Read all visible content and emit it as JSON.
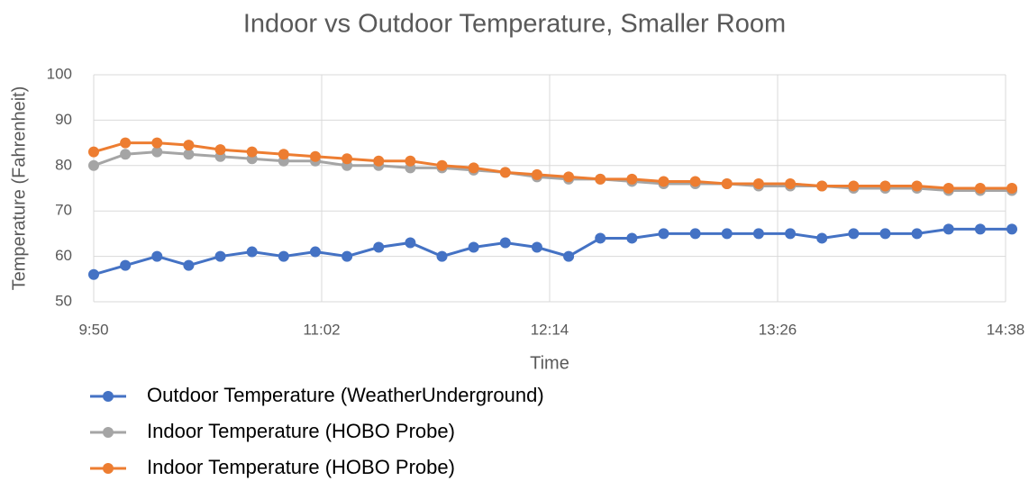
{
  "chart_data": {
    "type": "line",
    "title": "Indoor vs Outdoor Temperature, Smaller Room",
    "x_label": "Time",
    "y_label": "Temperature (Fahrenheit)",
    "x": [
      590,
      600,
      610,
      620,
      630,
      640,
      650,
      660,
      670,
      680,
      690,
      700,
      710,
      720,
      730,
      740,
      750,
      760,
      770,
      780,
      790,
      800,
      810,
      820,
      830,
      840,
      850,
      860,
      870,
      880
    ],
    "xlim": [
      590,
      878
    ],
    "xticks": [
      {
        "value": 590,
        "label": "9:50"
      },
      {
        "value": 662,
        "label": "11:02"
      },
      {
        "value": 734,
        "label": "12:14"
      },
      {
        "value": 806,
        "label": "13:26"
      },
      {
        "value": 878,
        "label": "14:38"
      }
    ],
    "ylim": [
      50,
      100
    ],
    "yticks": [
      50,
      60,
      70,
      80,
      90,
      100
    ],
    "grid": true,
    "legend": "bottom",
    "series": [
      {
        "name": "Outdoor Temperature (WeatherUnderground)",
        "color": "#4472c4",
        "values": [
          56,
          58,
          60,
          58,
          60,
          61,
          60,
          61,
          60,
          62,
          63,
          60,
          62,
          63,
          62,
          60,
          64,
          64,
          65,
          65,
          65,
          65,
          65,
          64,
          65,
          65,
          65,
          66,
          66,
          66
        ]
      },
      {
        "name": "Indoor Temperature (HOBO Probe)",
        "color": "#a5a5a5",
        "values": [
          80,
          82.5,
          83,
          82.5,
          82,
          81.5,
          81,
          81,
          80,
          80,
          79.5,
          79.5,
          79,
          78.5,
          77.5,
          77,
          77,
          76.5,
          76,
          76,
          76,
          75.5,
          75.5,
          75.5,
          75,
          75,
          75,
          74.5,
          74.5,
          74.5
        ]
      },
      {
        "name": "Indoor Temperature (HOBO Probe)",
        "color": "#ed7d31",
        "values": [
          83,
          85,
          85,
          84.5,
          83.5,
          83,
          82.5,
          82,
          81.5,
          81,
          81,
          80,
          79.5,
          78.5,
          78,
          77.5,
          77,
          77,
          76.5,
          76.5,
          76,
          76,
          76,
          75.5,
          75.5,
          75.5,
          75.5,
          75,
          75,
          75
        ]
      }
    ]
  }
}
